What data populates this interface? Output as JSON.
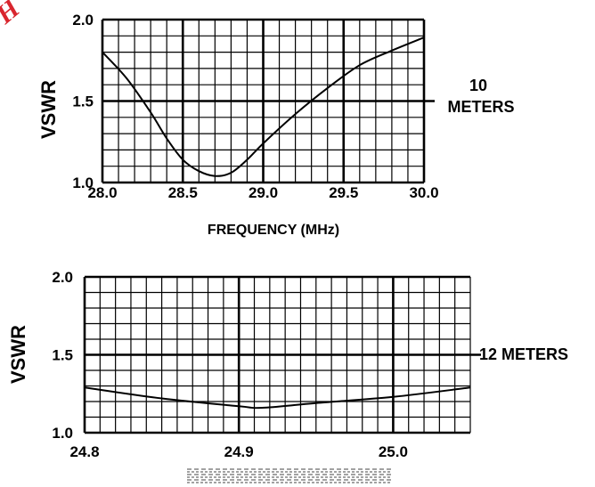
{
  "watermark": "H",
  "colors": {
    "ink": "#000000",
    "grid": "#000000",
    "watermark": "#d9262e",
    "paper": "#ffffff"
  },
  "chart_data": [
    {
      "type": "line",
      "band_label": [
        "10",
        "METERS"
      ],
      "ylabel": "VSWR",
      "xlabel": "FREQUENCY (MHz)",
      "xlim": [
        28.0,
        30.0
      ],
      "ylim": [
        1.0,
        2.0
      ],
      "x_ticks": [
        "28.0",
        "28.5",
        "29.0",
        "29.5",
        "30.0"
      ],
      "y_ticks": [
        "1.0",
        "1.5",
        "2.0"
      ],
      "reference_line": 1.5,
      "grid": true,
      "series": [
        {
          "x": [
            28.0,
            28.15,
            28.3,
            28.4,
            28.5,
            28.6,
            28.7,
            28.8,
            28.9,
            29.0,
            29.2,
            29.4,
            29.6,
            29.8,
            30.0
          ],
          "y": [
            1.8,
            1.64,
            1.43,
            1.27,
            1.14,
            1.07,
            1.04,
            1.06,
            1.14,
            1.24,
            1.42,
            1.58,
            1.72,
            1.81,
            1.89
          ]
        }
      ]
    },
    {
      "type": "line",
      "band_label": [
        "12 METERS"
      ],
      "ylabel": "VSWR",
      "xlabel": "",
      "xlim": [
        24.8,
        25.05
      ],
      "ylim": [
        1.0,
        2.0
      ],
      "x_ticks": [
        "24.8",
        "24.9",
        "25.0"
      ],
      "y_ticks": [
        "1.0",
        "1.5",
        "2.0"
      ],
      "reference_line": 1.5,
      "grid": true,
      "series": [
        {
          "x": [
            24.8,
            24.85,
            24.9,
            24.915,
            24.95,
            25.0,
            25.05
          ],
          "y": [
            1.29,
            1.22,
            1.17,
            1.16,
            1.19,
            1.23,
            1.29
          ]
        }
      ]
    }
  ]
}
